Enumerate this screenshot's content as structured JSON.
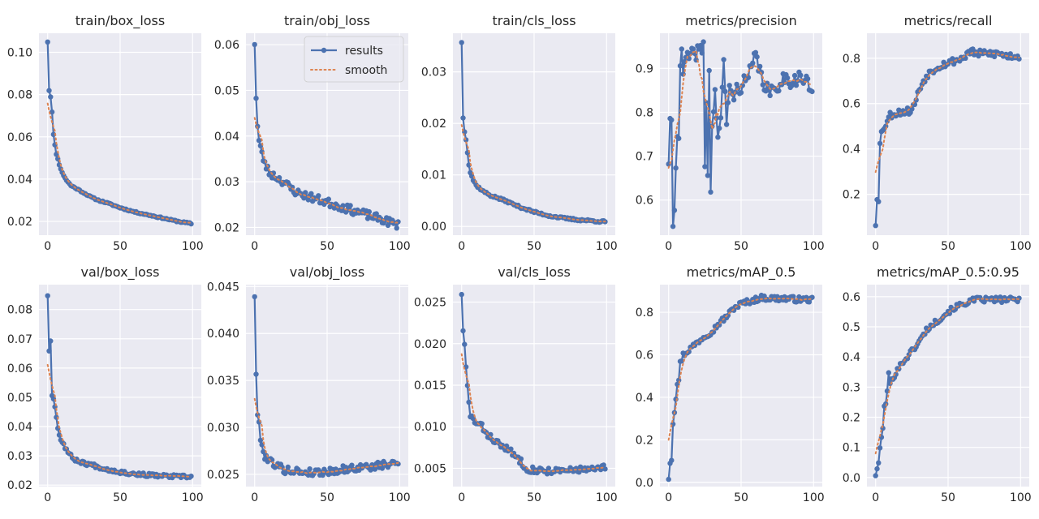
{
  "chart_data": [
    {
      "type": "line",
      "title": "train/box_loss",
      "xlim": [
        -6,
        106
      ],
      "ylim": [
        0.0135,
        0.109
      ],
      "yticks": [
        0.02,
        0.04,
        0.06,
        0.08,
        0.1
      ],
      "yfmt": 2,
      "anchors": [
        [
          0,
          0.105
        ],
        [
          1,
          0.082
        ],
        [
          2,
          0.079
        ],
        [
          3,
          0.072
        ],
        [
          4,
          0.061
        ],
        [
          5,
          0.056
        ],
        [
          6,
          0.052
        ],
        [
          8,
          0.047
        ],
        [
          10,
          0.043
        ],
        [
          13,
          0.0395
        ],
        [
          16,
          0.037
        ],
        [
          20,
          0.0355
        ],
        [
          25,
          0.0335
        ],
        [
          30,
          0.0315
        ],
        [
          35,
          0.03
        ],
        [
          40,
          0.029
        ],
        [
          50,
          0.0265
        ],
        [
          60,
          0.0245
        ],
        [
          70,
          0.023
        ],
        [
          80,
          0.0215
        ],
        [
          90,
          0.02
        ],
        [
          99,
          0.019
        ]
      ],
      "noise": 0.0003,
      "seed": 11
    },
    {
      "type": "line",
      "title": "train/obj_loss",
      "xlim": [
        -6,
        106
      ],
      "ylim": [
        0.0183,
        0.0625
      ],
      "yticks": [
        0.02,
        0.03,
        0.04,
        0.05,
        0.06
      ],
      "yfmt": 2,
      "anchors": [
        [
          0,
          0.0605
        ],
        [
          1,
          0.0485
        ],
        [
          2,
          0.042
        ],
        [
          3,
          0.039
        ],
        [
          5,
          0.036
        ],
        [
          7,
          0.034
        ],
        [
          10,
          0.032
        ],
        [
          15,
          0.031
        ],
        [
          20,
          0.03
        ],
        [
          25,
          0.0285
        ],
        [
          30,
          0.0275
        ],
        [
          40,
          0.0265
        ],
        [
          50,
          0.0255
        ],
        [
          60,
          0.0245
        ],
        [
          70,
          0.0235
        ],
        [
          80,
          0.0225
        ],
        [
          90,
          0.0215
        ],
        [
          99,
          0.0205
        ]
      ],
      "noise": 0.0009,
      "seed": 23,
      "legend": true
    },
    {
      "type": "line",
      "title": "train/cls_loss",
      "xlim": [
        -6,
        106
      ],
      "ylim": [
        -0.0017,
        0.0375
      ],
      "yticks": [
        0.0,
        0.01,
        0.02,
        0.03
      ],
      "yfmt": 2,
      "anchors": [
        [
          0,
          0.0358
        ],
        [
          1,
          0.021
        ],
        [
          2,
          0.0185
        ],
        [
          3,
          0.017
        ],
        [
          4,
          0.0145
        ],
        [
          5,
          0.012
        ],
        [
          6,
          0.0105
        ],
        [
          8,
          0.009
        ],
        [
          10,
          0.008
        ],
        [
          15,
          0.0068
        ],
        [
          20,
          0.006
        ],
        [
          25,
          0.0055
        ],
        [
          30,
          0.005
        ],
        [
          40,
          0.0038
        ],
        [
          50,
          0.0028
        ],
        [
          60,
          0.0021
        ],
        [
          70,
          0.0016
        ],
        [
          80,
          0.0013
        ],
        [
          90,
          0.0011
        ],
        [
          99,
          0.0009
        ]
      ],
      "noise": 0.0002,
      "seed": 37
    },
    {
      "type": "line",
      "title": "metrics/precision",
      "xlim": [
        -6,
        106
      ],
      "ylim": [
        0.52,
        0.98
      ],
      "yticks": [
        0.6,
        0.7,
        0.8,
        0.9
      ],
      "yfmt": 1,
      "anchors": [
        [
          0,
          0.69
        ],
        [
          1,
          0.77
        ],
        [
          2,
          0.77
        ],
        [
          3,
          0.55
        ],
        [
          4,
          0.57
        ],
        [
          5,
          0.68
        ],
        [
          6,
          0.76
        ],
        [
          7,
          0.75
        ],
        [
          8,
          0.91
        ],
        [
          9,
          0.93
        ],
        [
          10,
          0.89
        ],
        [
          12,
          0.92
        ],
        [
          15,
          0.93
        ],
        [
          18,
          0.93
        ],
        [
          20,
          0.94
        ],
        [
          22,
          0.94
        ],
        [
          24,
          0.95
        ],
        [
          25,
          0.68
        ],
        [
          26,
          0.82
        ],
        [
          27,
          0.67
        ],
        [
          28,
          0.89
        ],
        [
          29,
          0.62
        ],
        [
          30,
          0.77
        ],
        [
          32,
          0.84
        ],
        [
          34,
          0.75
        ],
        [
          36,
          0.78
        ],
        [
          38,
          0.91
        ],
        [
          40,
          0.78
        ],
        [
          42,
          0.86
        ],
        [
          44,
          0.83
        ],
        [
          46,
          0.85
        ],
        [
          50,
          0.86
        ],
        [
          55,
          0.88
        ],
        [
          60,
          0.93
        ],
        [
          65,
          0.87
        ],
        [
          70,
          0.84
        ],
        [
          75,
          0.86
        ],
        [
          80,
          0.88
        ],
        [
          85,
          0.87
        ],
        [
          90,
          0.88
        ],
        [
          95,
          0.87
        ],
        [
          99,
          0.85
        ]
      ],
      "noise": 0.016,
      "seed": 41
    },
    {
      "type": "line",
      "title": "metrics/recall",
      "xlim": [
        -6,
        106
      ],
      "ylim": [
        0.02,
        0.91
      ],
      "yticks": [
        0.2,
        0.4,
        0.6,
        0.8
      ],
      "yfmt": 1,
      "anchors": [
        [
          0,
          0.07
        ],
        [
          1,
          0.19
        ],
        [
          2,
          0.18
        ],
        [
          3,
          0.42
        ],
        [
          4,
          0.47
        ],
        [
          5,
          0.49
        ],
        [
          7,
          0.51
        ],
        [
          10,
          0.55
        ],
        [
          15,
          0.56
        ],
        [
          20,
          0.565
        ],
        [
          25,
          0.57
        ],
        [
          28,
          0.62
        ],
        [
          30,
          0.66
        ],
        [
          33,
          0.7
        ],
        [
          36,
          0.73
        ],
        [
          40,
          0.75
        ],
        [
          45,
          0.77
        ],
        [
          50,
          0.78
        ],
        [
          55,
          0.79
        ],
        [
          60,
          0.8
        ],
        [
          65,
          0.83
        ],
        [
          70,
          0.82
        ],
        [
          75,
          0.82
        ],
        [
          80,
          0.82
        ],
        [
          85,
          0.82
        ],
        [
          90,
          0.81
        ],
        [
          95,
          0.81
        ],
        [
          99,
          0.81
        ]
      ],
      "noise": 0.016,
      "seed": 53
    },
    {
      "type": "line",
      "title": "val/box_loss",
      "xlim": [
        -6,
        106
      ],
      "ylim": [
        0.0195,
        0.0885
      ],
      "yticks": [
        0.02,
        0.03,
        0.04,
        0.05,
        0.06,
        0.07,
        0.08
      ],
      "yfmt": 2,
      "anchors": [
        [
          0,
          0.085
        ],
        [
          1,
          0.066
        ],
        [
          2,
          0.069
        ],
        [
          3,
          0.051
        ],
        [
          4,
          0.05
        ],
        [
          5,
          0.0465
        ],
        [
          6,
          0.0435
        ],
        [
          7,
          0.04
        ],
        [
          8,
          0.037
        ],
        [
          9,
          0.0355
        ],
        [
          10,
          0.035
        ],
        [
          12,
          0.033
        ],
        [
          15,
          0.0305
        ],
        [
          18,
          0.029
        ],
        [
          20,
          0.0285
        ],
        [
          25,
          0.0275
        ],
        [
          30,
          0.027
        ],
        [
          40,
          0.0255
        ],
        [
          50,
          0.0245
        ],
        [
          60,
          0.0238
        ],
        [
          70,
          0.0234
        ],
        [
          80,
          0.0231
        ],
        [
          90,
          0.0229
        ],
        [
          99,
          0.0228
        ]
      ],
      "noise": 0.0006,
      "seed": 67
    },
    {
      "type": "line",
      "title": "val/obj_loss",
      "xlim": [
        -6,
        106
      ],
      "ylim": [
        0.0237,
        0.0452
      ],
      "yticks": [
        0.025,
        0.03,
        0.035,
        0.04,
        0.045
      ],
      "yfmt": 3,
      "anchors": [
        [
          0,
          0.0441
        ],
        [
          1,
          0.0357
        ],
        [
          2,
          0.031
        ],
        [
          3,
          0.0305
        ],
        [
          4,
          0.029
        ],
        [
          5,
          0.028
        ],
        [
          7,
          0.027
        ],
        [
          10,
          0.0265
        ],
        [
          15,
          0.026
        ],
        [
          20,
          0.0255
        ],
        [
          30,
          0.0253
        ],
        [
          40,
          0.0252
        ],
        [
          50,
          0.0253
        ],
        [
          60,
          0.0255
        ],
        [
          70,
          0.0257
        ],
        [
          80,
          0.0258
        ],
        [
          90,
          0.026
        ],
        [
          99,
          0.0262
        ]
      ],
      "noise": 0.0004,
      "seed": 79
    },
    {
      "type": "line",
      "title": "val/cls_loss",
      "xlim": [
        -6,
        106
      ],
      "ylim": [
        0.0028,
        0.0271
      ],
      "yticks": [
        0.005,
        0.01,
        0.015,
        0.02,
        0.025
      ],
      "yfmt": 3,
      "anchors": [
        [
          0,
          0.0261
        ],
        [
          1,
          0.0213
        ],
        [
          2,
          0.0198
        ],
        [
          3,
          0.017
        ],
        [
          4,
          0.0148
        ],
        [
          5,
          0.0128
        ],
        [
          6,
          0.0115
        ],
        [
          8,
          0.0108
        ],
        [
          10,
          0.0104
        ],
        [
          14,
          0.01
        ],
        [
          18,
          0.009
        ],
        [
          22,
          0.0085
        ],
        [
          26,
          0.0078
        ],
        [
          30,
          0.0075
        ],
        [
          35,
          0.0068
        ],
        [
          40,
          0.006
        ],
        [
          45,
          0.005
        ],
        [
          50,
          0.0048
        ],
        [
          60,
          0.0047
        ],
        [
          70,
          0.0046
        ],
        [
          80,
          0.0049
        ],
        [
          90,
          0.0048
        ],
        [
          99,
          0.0051
        ]
      ],
      "noise": 0.0004,
      "seed": 83
    },
    {
      "type": "line",
      "title": "metrics/mAP_0.5",
      "xlim": [
        -6,
        106
      ],
      "ylim": [
        -0.02,
        0.93
      ],
      "yticks": [
        0.0,
        0.2,
        0.4,
        0.6,
        0.8
      ],
      "yfmt": 1,
      "anchors": [
        [
          0,
          0.02
        ],
        [
          1,
          0.1
        ],
        [
          2,
          0.11
        ],
        [
          3,
          0.28
        ],
        [
          4,
          0.34
        ],
        [
          5,
          0.4
        ],
        [
          6,
          0.47
        ],
        [
          7,
          0.48
        ],
        [
          8,
          0.56
        ],
        [
          10,
          0.6
        ],
        [
          12,
          0.61
        ],
        [
          15,
          0.63
        ],
        [
          20,
          0.66
        ],
        [
          25,
          0.69
        ],
        [
          30,
          0.71
        ],
        [
          35,
          0.75
        ],
        [
          40,
          0.78
        ],
        [
          45,
          0.82
        ],
        [
          50,
          0.84
        ],
        [
          55,
          0.85
        ],
        [
          60,
          0.86
        ],
        [
          65,
          0.87
        ],
        [
          70,
          0.865
        ],
        [
          80,
          0.865
        ],
        [
          90,
          0.86
        ],
        [
          99,
          0.86
        ]
      ],
      "noise": 0.013,
      "seed": 97
    },
    {
      "type": "line",
      "title": "metrics/mAP_0.5:0.95",
      "xlim": [
        -6,
        106
      ],
      "ylim": [
        -0.03,
        0.64
      ],
      "yticks": [
        0.0,
        0.1,
        0.2,
        0.3,
        0.4,
        0.5,
        0.6
      ],
      "yfmt": 1,
      "anchors": [
        [
          0,
          0.01
        ],
        [
          1,
          0.03
        ],
        [
          2,
          0.04
        ],
        [
          3,
          0.1
        ],
        [
          4,
          0.13
        ],
        [
          5,
          0.17
        ],
        [
          6,
          0.23
        ],
        [
          7,
          0.25
        ],
        [
          8,
          0.28
        ],
        [
          9,
          0.35
        ],
        [
          10,
          0.31
        ],
        [
          12,
          0.33
        ],
        [
          15,
          0.36
        ],
        [
          20,
          0.39
        ],
        [
          25,
          0.42
        ],
        [
          30,
          0.45
        ],
        [
          35,
          0.49
        ],
        [
          40,
          0.51
        ],
        [
          45,
          0.53
        ],
        [
          50,
          0.55
        ],
        [
          55,
          0.565
        ],
        [
          60,
          0.575
        ],
        [
          65,
          0.585
        ],
        [
          70,
          0.59
        ],
        [
          80,
          0.59
        ],
        [
          90,
          0.59
        ],
        [
          99,
          0.59
        ]
      ],
      "noise": 0.009,
      "seed": 101
    }
  ],
  "xticks": [
    0,
    50,
    100
  ],
  "legend": {
    "results": "results",
    "smooth": "smooth"
  },
  "colors": {
    "results": "#4c72b0",
    "smooth": "#dd8452",
    "grid": "#ffffff",
    "panel": "#eaeaf2",
    "text": "#262626"
  }
}
